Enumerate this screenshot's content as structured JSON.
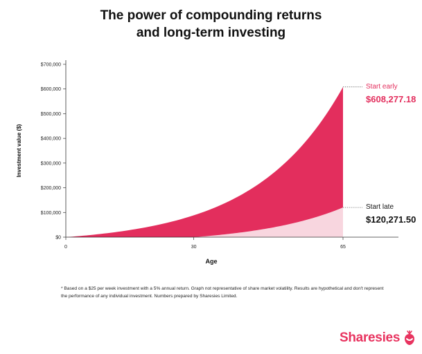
{
  "title_line1": "The power of compounding returns",
  "title_line2": "and long-term investing",
  "footnote": "* Based on a $25 per week investment with a 5% annual return. Graph not representative of share market volatility. Results are hypothetical and don't represent the performance of any individual investment. Numbers prepared by Sharesies Limited.",
  "brand": "Sharesies",
  "colors": {
    "early": "#e32e5d",
    "late": "#f8d6df",
    "label_early": "#e32e5d",
    "text": "#111111"
  },
  "chart_data": {
    "type": "area",
    "xlabel": "Age",
    "ylabel": "Investment value ($)",
    "xlim": [
      0,
      78
    ],
    "ylim": [
      0,
      700000
    ],
    "x_ticks": [
      0,
      30,
      65
    ],
    "x_tick_labels": [
      "0",
      "30",
      "65"
    ],
    "y_ticks": [
      0,
      100000,
      200000,
      300000,
      400000,
      500000,
      600000,
      700000
    ],
    "y_tick_labels": [
      "$0",
      "$100,000",
      "$200,000",
      "$300,000",
      "$400,000",
      "$500,000",
      "$600,000",
      "$700,000"
    ],
    "grid": false,
    "series": [
      {
        "name": "Start early",
        "start_age": 0,
        "end_age": 65,
        "final_value": 608277.18,
        "final_label": "$608,277.18"
      },
      {
        "name": "Start late",
        "start_age": 30,
        "end_age": 65,
        "final_value": 120271.5,
        "final_label": "$120,271.50"
      }
    ],
    "annual_return": 0.05,
    "weekly_contribution": 25
  }
}
